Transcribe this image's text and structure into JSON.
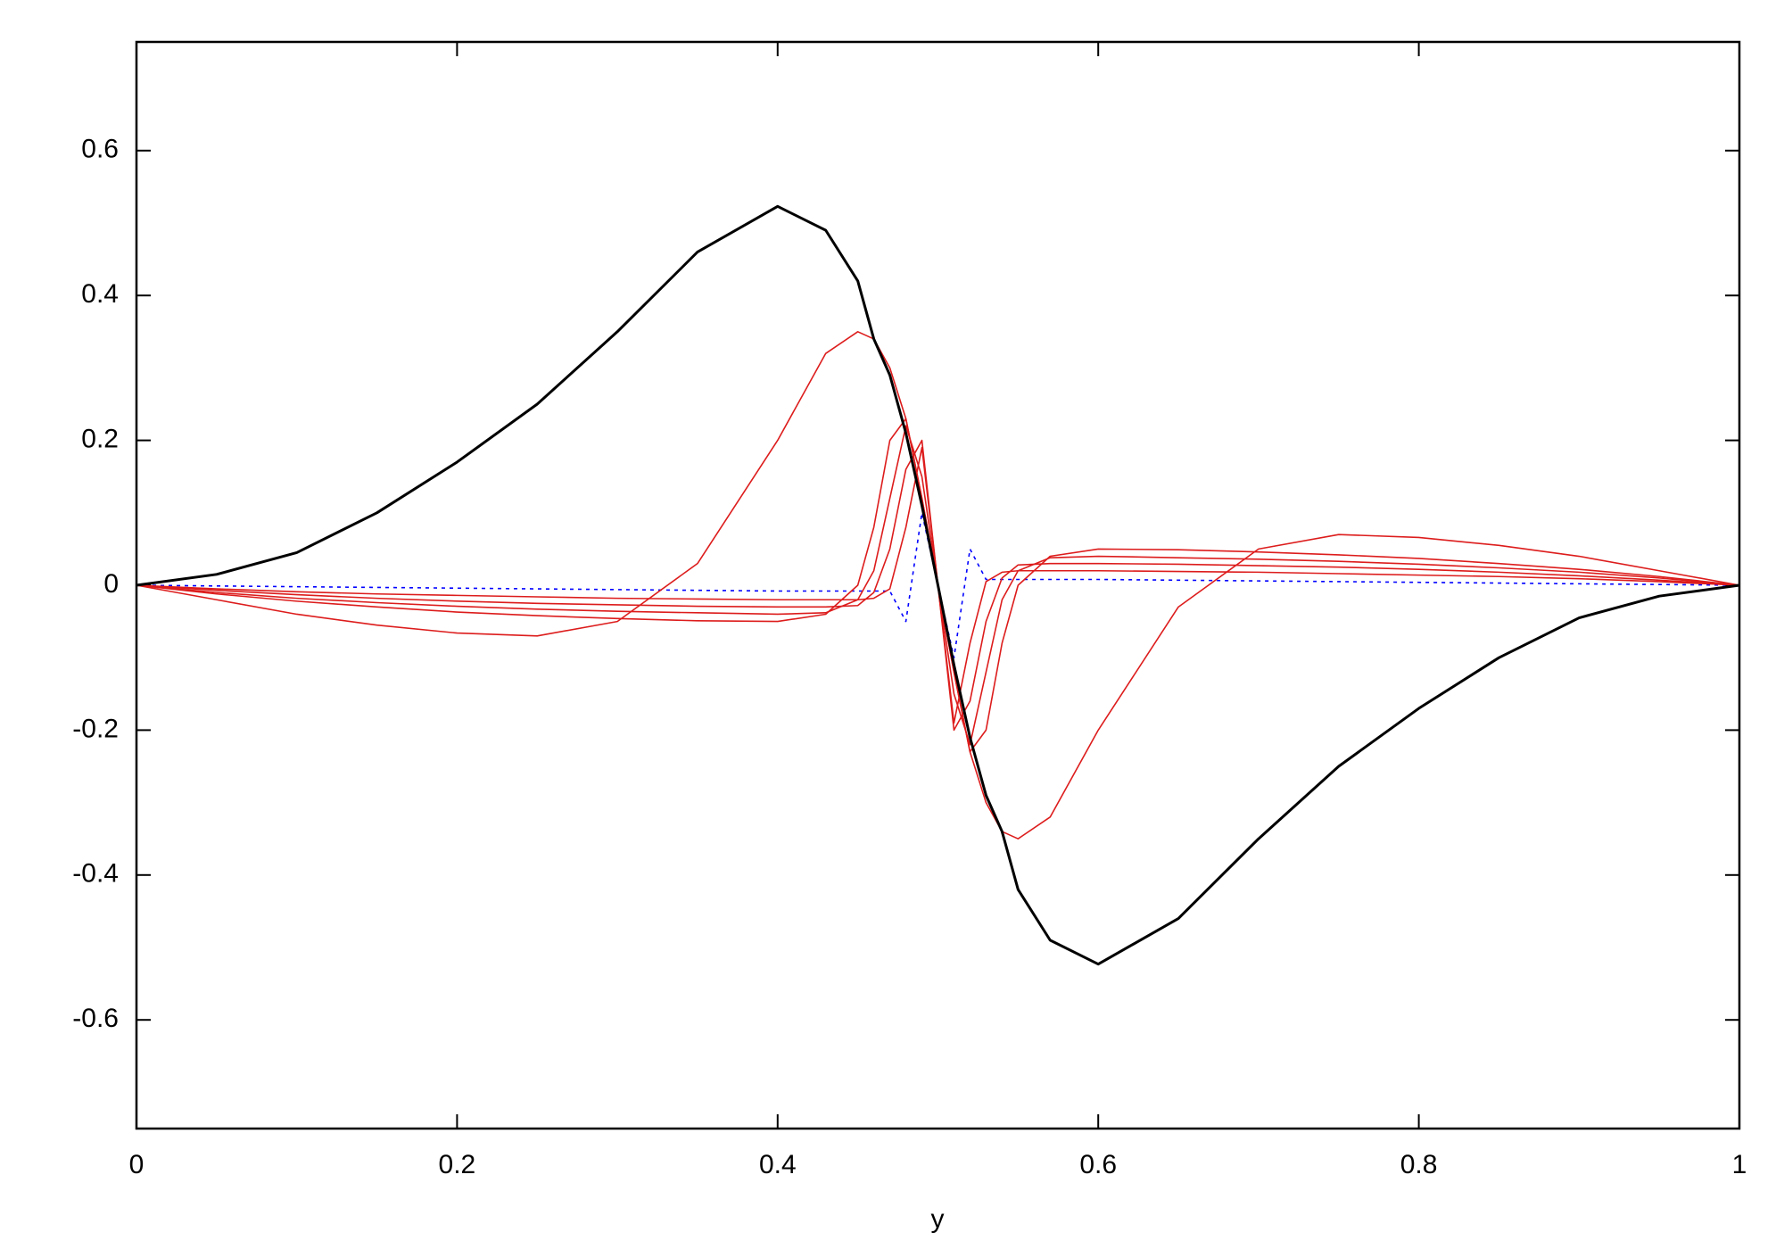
{
  "chart_data": {
    "type": "line",
    "x_label": "y",
    "x": [
      0,
      0.05,
      0.1,
      0.15,
      0.2,
      0.25,
      0.3,
      0.35,
      0.4,
      0.43,
      0.45,
      0.46,
      0.47,
      0.48,
      0.49,
      0.5,
      0.51,
      0.52,
      0.53,
      0.54,
      0.55,
      0.57,
      0.6,
      0.65,
      0.7,
      0.75,
      0.8,
      0.85,
      0.9,
      0.95,
      1
    ],
    "series": [
      {
        "color": "#000000",
        "line_width": 3,
        "style": "solid",
        "values": [
          0,
          0.015,
          0.045,
          0.1,
          0.17,
          0.25,
          0.35,
          0.46,
          0.523,
          0.49,
          0.42,
          0.34,
          0.29,
          0.21,
          0.11,
          0,
          -0.11,
          -0.21,
          -0.29,
          -0.34,
          -0.42,
          -0.49,
          -0.523,
          -0.46,
          -0.35,
          -0.25,
          -0.17,
          -0.1,
          -0.045,
          -0.015,
          0
        ]
      },
      {
        "color": "#dd1c1c",
        "line_width": 1.6,
        "style": "solid",
        "values": [
          0,
          -0.02,
          -0.04,
          -0.055,
          -0.066,
          -0.07,
          -0.05,
          0.03,
          0.2,
          0.32,
          0.35,
          0.34,
          0.3,
          0.23,
          0.12,
          0,
          -0.12,
          -0.23,
          -0.3,
          -0.34,
          -0.35,
          -0.32,
          -0.2,
          -0.03,
          0.05,
          0.07,
          0.066,
          0.055,
          0.04,
          0.02,
          0
        ]
      },
      {
        "color": "#dd1c1c",
        "line_width": 1.6,
        "style": "solid",
        "values": [
          0,
          -0.012,
          -0.022,
          -0.03,
          -0.037,
          -0.042,
          -0.046,
          -0.049,
          -0.05,
          -0.04,
          0,
          0.08,
          0.2,
          0.23,
          0.12,
          0,
          -0.12,
          -0.23,
          -0.2,
          -0.08,
          0,
          0.04,
          0.05,
          0.049,
          0.046,
          0.042,
          0.037,
          0.03,
          0.022,
          0.012,
          0
        ]
      },
      {
        "color": "#dd1c1c",
        "line_width": 1.6,
        "style": "solid",
        "values": [
          0,
          -0.01,
          -0.018,
          -0.024,
          -0.029,
          -0.033,
          -0.036,
          -0.038,
          -0.04,
          -0.038,
          -0.02,
          0.02,
          0.12,
          0.22,
          0.15,
          0,
          -0.15,
          -0.22,
          -0.12,
          -0.02,
          0.02,
          0.038,
          0.04,
          0.038,
          0.036,
          0.033,
          0.029,
          0.024,
          0.018,
          0.01,
          0
        ]
      },
      {
        "color": "#dd1c1c",
        "line_width": 1.6,
        "style": "solid",
        "values": [
          0,
          -0.007,
          -0.013,
          -0.018,
          -0.022,
          -0.025,
          -0.027,
          -0.029,
          -0.03,
          -0.03,
          -0.028,
          -0.01,
          0.05,
          0.16,
          0.2,
          0,
          -0.2,
          -0.16,
          -0.05,
          0.01,
          0.028,
          0.03,
          0.03,
          0.029,
          0.027,
          0.025,
          0.022,
          0.018,
          0.013,
          0.007,
          0
        ]
      },
      {
        "color": "#dd1c1c",
        "line_width": 1.6,
        "style": "solid",
        "values": [
          0,
          -0.005,
          -0.009,
          -0.012,
          -0.014,
          -0.016,
          -0.018,
          -0.019,
          -0.02,
          -0.02,
          -0.02,
          -0.018,
          -0.005,
          0.08,
          0.19,
          0,
          -0.19,
          -0.08,
          0.005,
          0.018,
          0.02,
          0.02,
          0.02,
          0.019,
          0.018,
          0.016,
          0.014,
          0.012,
          0.009,
          0.005,
          0
        ]
      },
      {
        "color": "#0000ff",
        "line_width": 1.6,
        "style": "dotted",
        "values": [
          0,
          -0.001,
          -0.002,
          -0.003,
          -0.004,
          -0.005,
          -0.006,
          -0.007,
          -0.008,
          -0.008,
          -0.008,
          -0.008,
          -0.008,
          -0.05,
          0.1,
          0,
          -0.1,
          0.05,
          0.008,
          0.008,
          0.008,
          0.008,
          0.008,
          0.007,
          0.006,
          0.005,
          0.004,
          0.003,
          0.002,
          0.001,
          0
        ]
      }
    ],
    "xlim": [
      0,
      1
    ],
    "xticks": [
      0,
      0.2,
      0.4,
      0.6,
      0.8,
      1
    ],
    "ylim": [
      -0.75,
      0.75
    ],
    "yticks": [
      -0.6,
      -0.4,
      -0.2,
      0,
      0.2,
      0.4,
      0.6
    ]
  }
}
